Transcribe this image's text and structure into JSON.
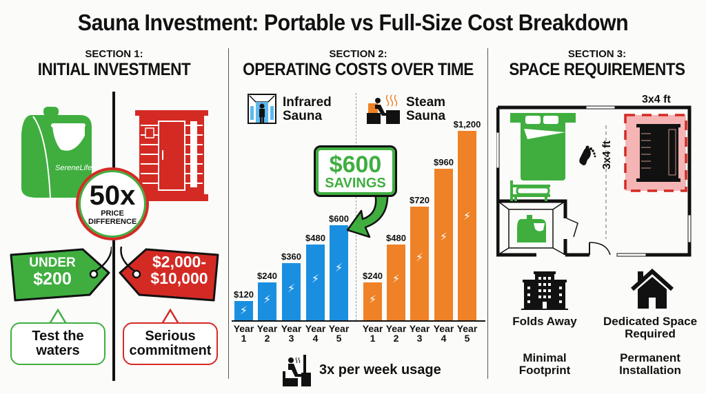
{
  "title": "Sauna Investment: Portable vs Full-Size Cost Breakdown",
  "colors": {
    "green": "#3fae3f",
    "red": "#d42a24",
    "blue": "#1a8fe0",
    "orange": "#ef8127",
    "black": "#111111"
  },
  "section1": {
    "sub": "SECTION 1:",
    "heading": "INITIAL INVESTMENT",
    "portable_brand": "SereneLife",
    "badge_big": "50x",
    "badge_small": "PRICE DIFFERENCE",
    "portable_price_line1": "UNDER",
    "portable_price_line2": "$200",
    "full_price_line1": "$2,000-",
    "full_price_line2": "$10,000",
    "portable_note": "Test the waters",
    "full_note": "Serious commitment"
  },
  "section2": {
    "sub": "SECTION 2:",
    "heading": "OPERATING COSTS OVER TIME",
    "legend_infrared": "Infrared Sauna",
    "legend_steam": "Steam Sauna",
    "savings_amount": "$600",
    "savings_label": "SAVINGS",
    "usage_note": "3x per week usage",
    "year_word": "Year"
  },
  "section3": {
    "sub": "SECTION 3:",
    "heading": "SPACE REQUIREMENTS",
    "dim_top": "3x4 ft",
    "dim_side": "3x4 ft",
    "left_feature": "Folds Away",
    "right_feature": "Dedicated Space Required",
    "left_note": "Minimal Footprint",
    "right_note": "Permanent Installation"
  },
  "chart_data": {
    "type": "bar",
    "title": "Operating Costs Over Time",
    "categories": [
      "Year 1",
      "Year 2",
      "Year 3",
      "Year 4",
      "Year 5"
    ],
    "series": [
      {
        "name": "Infrared Sauna",
        "color": "#1a8fe0",
        "values": [
          120,
          240,
          360,
          480,
          600
        ],
        "labels": [
          "$120",
          "$240",
          "$360",
          "$480",
          "$600"
        ]
      },
      {
        "name": "Steam Sauna",
        "color": "#ef8127",
        "values": [
          240,
          480,
          720,
          960,
          1200
        ],
        "labels": [
          "$240",
          "$480",
          "$720",
          "$960",
          "$1,200"
        ]
      }
    ],
    "annotation": "$600 SAVINGS",
    "xlabel": "",
    "ylabel": "",
    "ylim": [
      0,
      1200
    ],
    "grid": false,
    "legend_position": "top"
  }
}
